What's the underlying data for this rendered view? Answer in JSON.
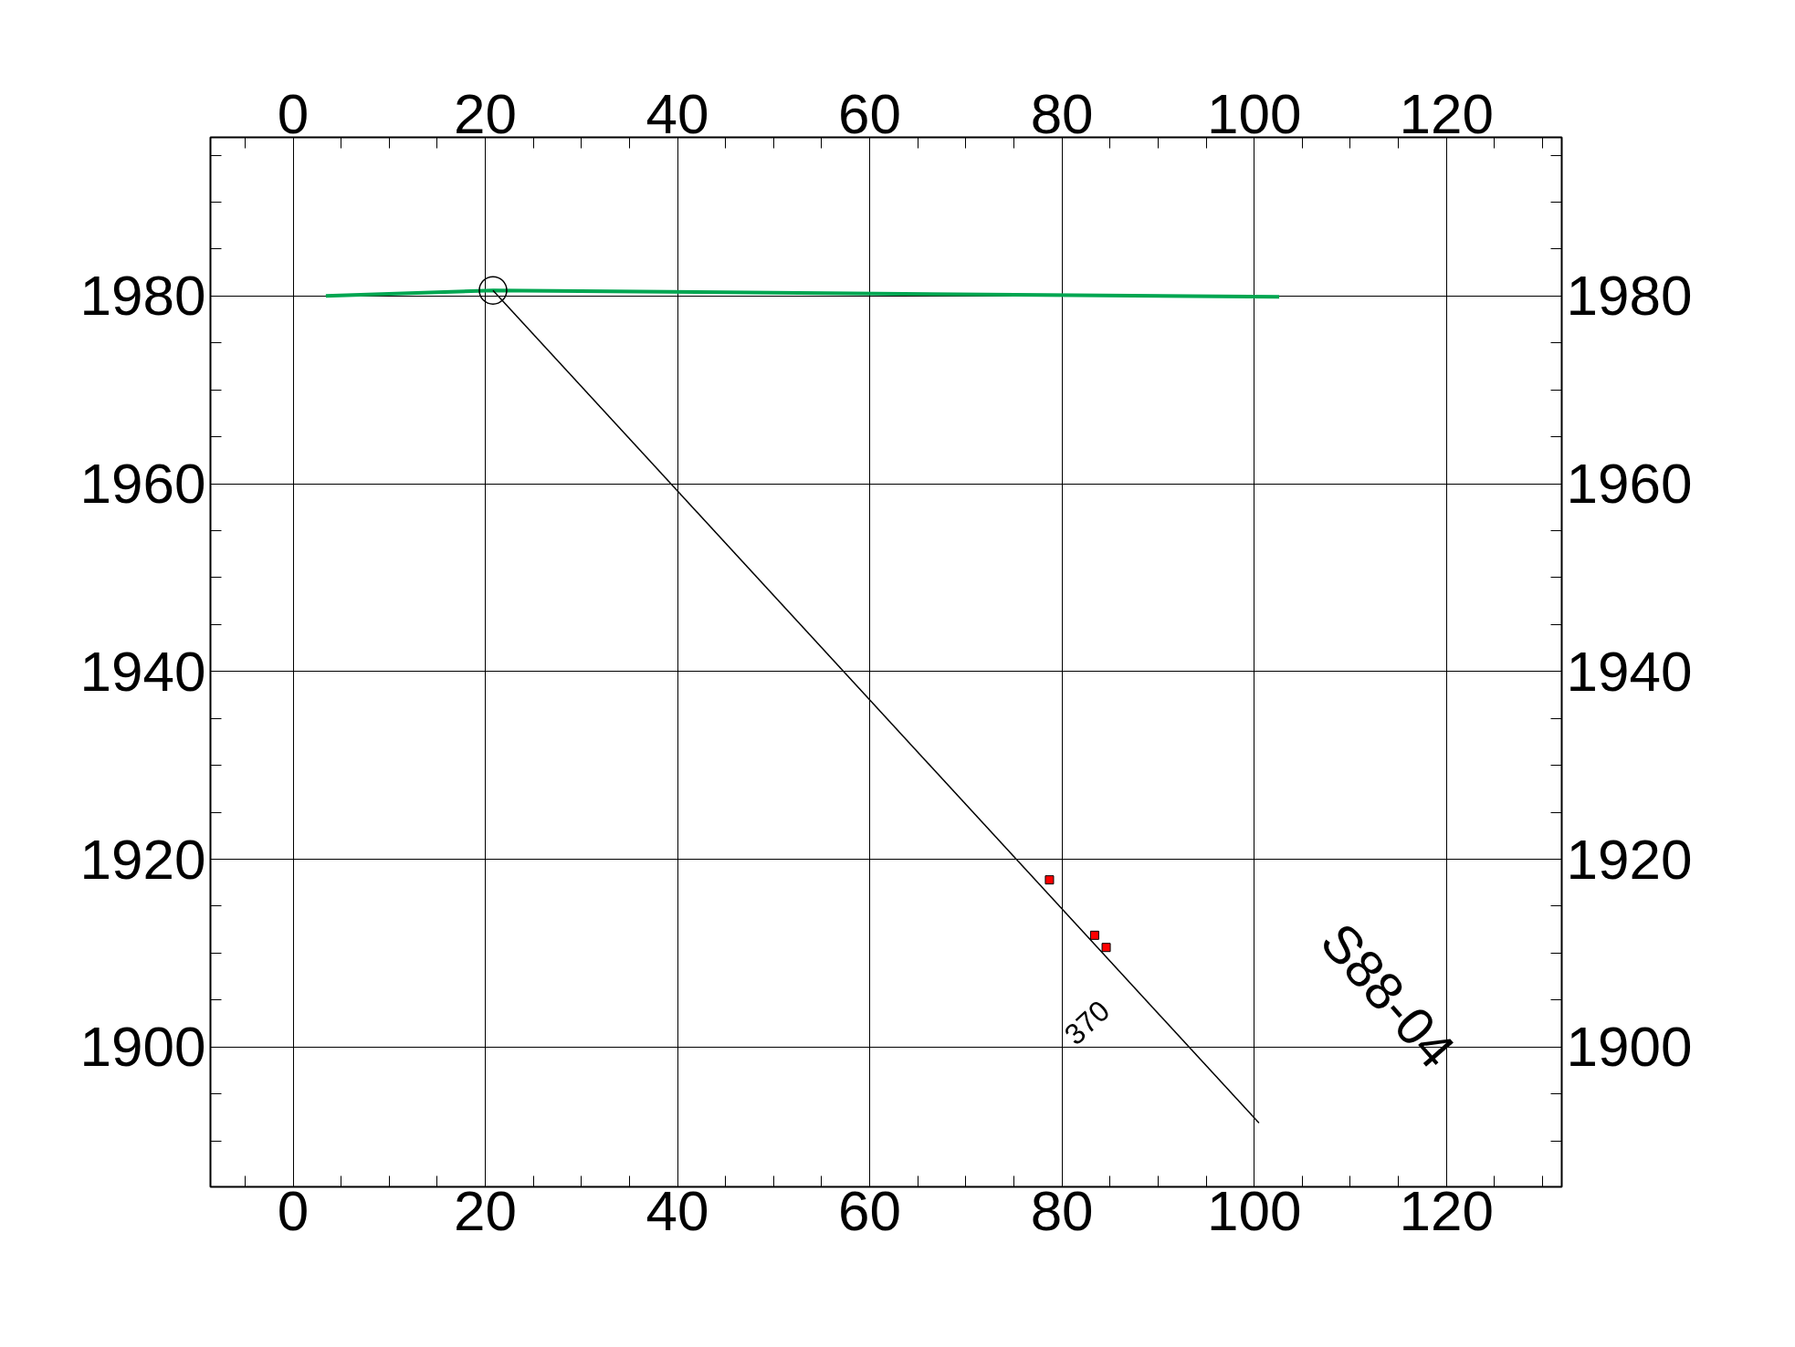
{
  "chart_data": {
    "type": "line",
    "xlim": [
      -8.6,
      132
    ],
    "ylim": [
      1885.1,
      1996.9
    ],
    "x2lim": [
      -8.6,
      132
    ],
    "y2lim": [
      1885.1,
      1996.9
    ],
    "xticks": [
      0,
      20,
      40,
      60,
      80,
      100,
      120,
      {
        "value": -5,
        "label": null
      },
      {
        "value": 5,
        "label": null
      },
      {
        "value": 10,
        "label": null
      },
      {
        "value": 15,
        "label": null
      },
      {
        "value": 25,
        "label": null
      },
      {
        "value": 30,
        "label": null
      },
      {
        "value": 35,
        "label": null
      },
      {
        "value": 45,
        "label": null
      },
      {
        "value": 50,
        "label": null
      },
      {
        "value": 55,
        "label": null
      },
      {
        "value": 65,
        "label": null
      },
      {
        "value": 70,
        "label": null
      },
      {
        "value": 75,
        "label": null
      },
      {
        "value": 85,
        "label": null
      },
      {
        "value": 90,
        "label": null
      },
      {
        "value": 95,
        "label": null
      },
      {
        "value": 105,
        "label": null
      },
      {
        "value": 110,
        "label": null
      },
      {
        "value": 115,
        "label": null
      },
      {
        "value": 125,
        "label": null
      },
      {
        "value": 130,
        "label": null
      }
    ],
    "x2ticks": [
      0,
      20,
      40,
      60,
      80,
      100,
      120
    ],
    "yticks": [
      1900,
      1920,
      1940,
      1960,
      1980,
      {
        "value": 1890,
        "label": null
      },
      {
        "value": 1895,
        "label": null
      },
      {
        "value": 1905,
        "label": null
      },
      {
        "value": 1910,
        "label": null
      },
      {
        "value": 1915,
        "label": null
      },
      {
        "value": 1925,
        "label": null
      },
      {
        "value": 1930,
        "label": null
      },
      {
        "value": 1935,
        "label": null
      },
      {
        "value": 1945,
        "label": null
      },
      {
        "value": 1950,
        "label": null
      },
      {
        "value": 1955,
        "label": null
      },
      {
        "value": 1965,
        "label": null
      },
      {
        "value": 1970,
        "label": null
      },
      {
        "value": 1975,
        "label": null
      },
      {
        "value": 1985,
        "label": null
      },
      {
        "value": 1990,
        "label": null
      },
      {
        "value": 1995,
        "label": null
      }
    ],
    "y2ticks": [
      1900,
      1920,
      1940,
      1960,
      1980
    ],
    "grid": true,
    "series": [
      {
        "color": "#00a651",
        "x": [
          3.4,
          20.8,
          102.6
        ],
        "values": [
          1980,
          1980.6,
          1979.9
        ]
      },
      {
        "color": "#000000",
        "x": [
          20.8,
          100.5
        ],
        "values": [
          1980.6,
          1891.9
        ]
      },
      {
        "type": "scatter",
        "marker": "circle",
        "color": "#000000",
        "x": [
          20.8
        ],
        "values": [
          1980.6
        ]
      },
      {
        "type": "scatter",
        "marker": "square",
        "color": "#ff0000",
        "x": [
          78.7,
          83.4,
          84.6
        ],
        "values": [
          1917.8,
          1911.9,
          1910.6
        ]
      }
    ],
    "annotations": [
      "370",
      "S88-04"
    ]
  }
}
